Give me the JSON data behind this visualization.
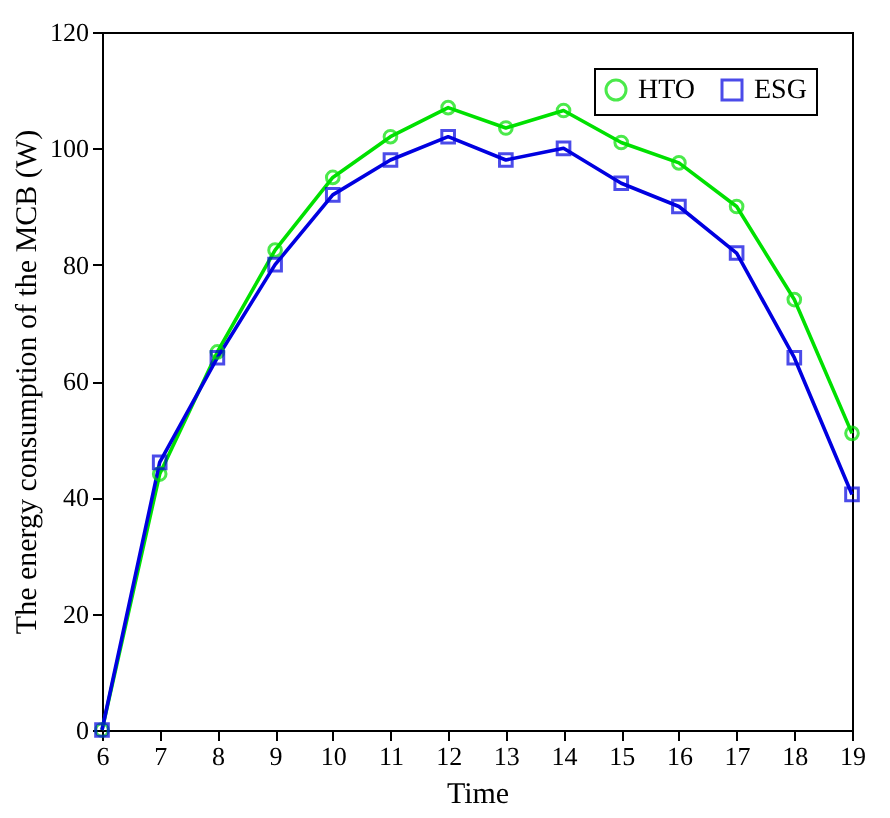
{
  "chart_data": {
    "type": "line",
    "xlabel": "Time",
    "ylabel": "The energy consumption of the MCB (W)",
    "x": [
      6,
      7,
      8,
      9,
      10,
      11,
      12,
      13,
      14,
      15,
      16,
      17,
      18,
      19
    ],
    "series": [
      {
        "name": "HTO",
        "color": "#00e000",
        "marker": "circle",
        "values": [
          0,
          44,
          65,
          82.5,
          95,
          102,
          107,
          103.5,
          106.5,
          101,
          97.5,
          90,
          74,
          51
        ]
      },
      {
        "name": "ESG",
        "color": "#0000e0",
        "marker": "square",
        "values": [
          0,
          46,
          64,
          80,
          92,
          98,
          102,
          98,
          100,
          94,
          90,
          82,
          64,
          40.5
        ]
      }
    ],
    "xlim": [
      6,
      19
    ],
    "xticks": [
      6,
      7,
      8,
      9,
      10,
      11,
      12,
      13,
      14,
      15,
      16,
      17,
      18,
      19
    ],
    "ylim": [
      0,
      120
    ],
    "yticks": [
      0,
      20,
      40,
      60,
      80,
      100,
      120
    ],
    "grid": false,
    "legend": "top right",
    "line_style": "solid"
  }
}
